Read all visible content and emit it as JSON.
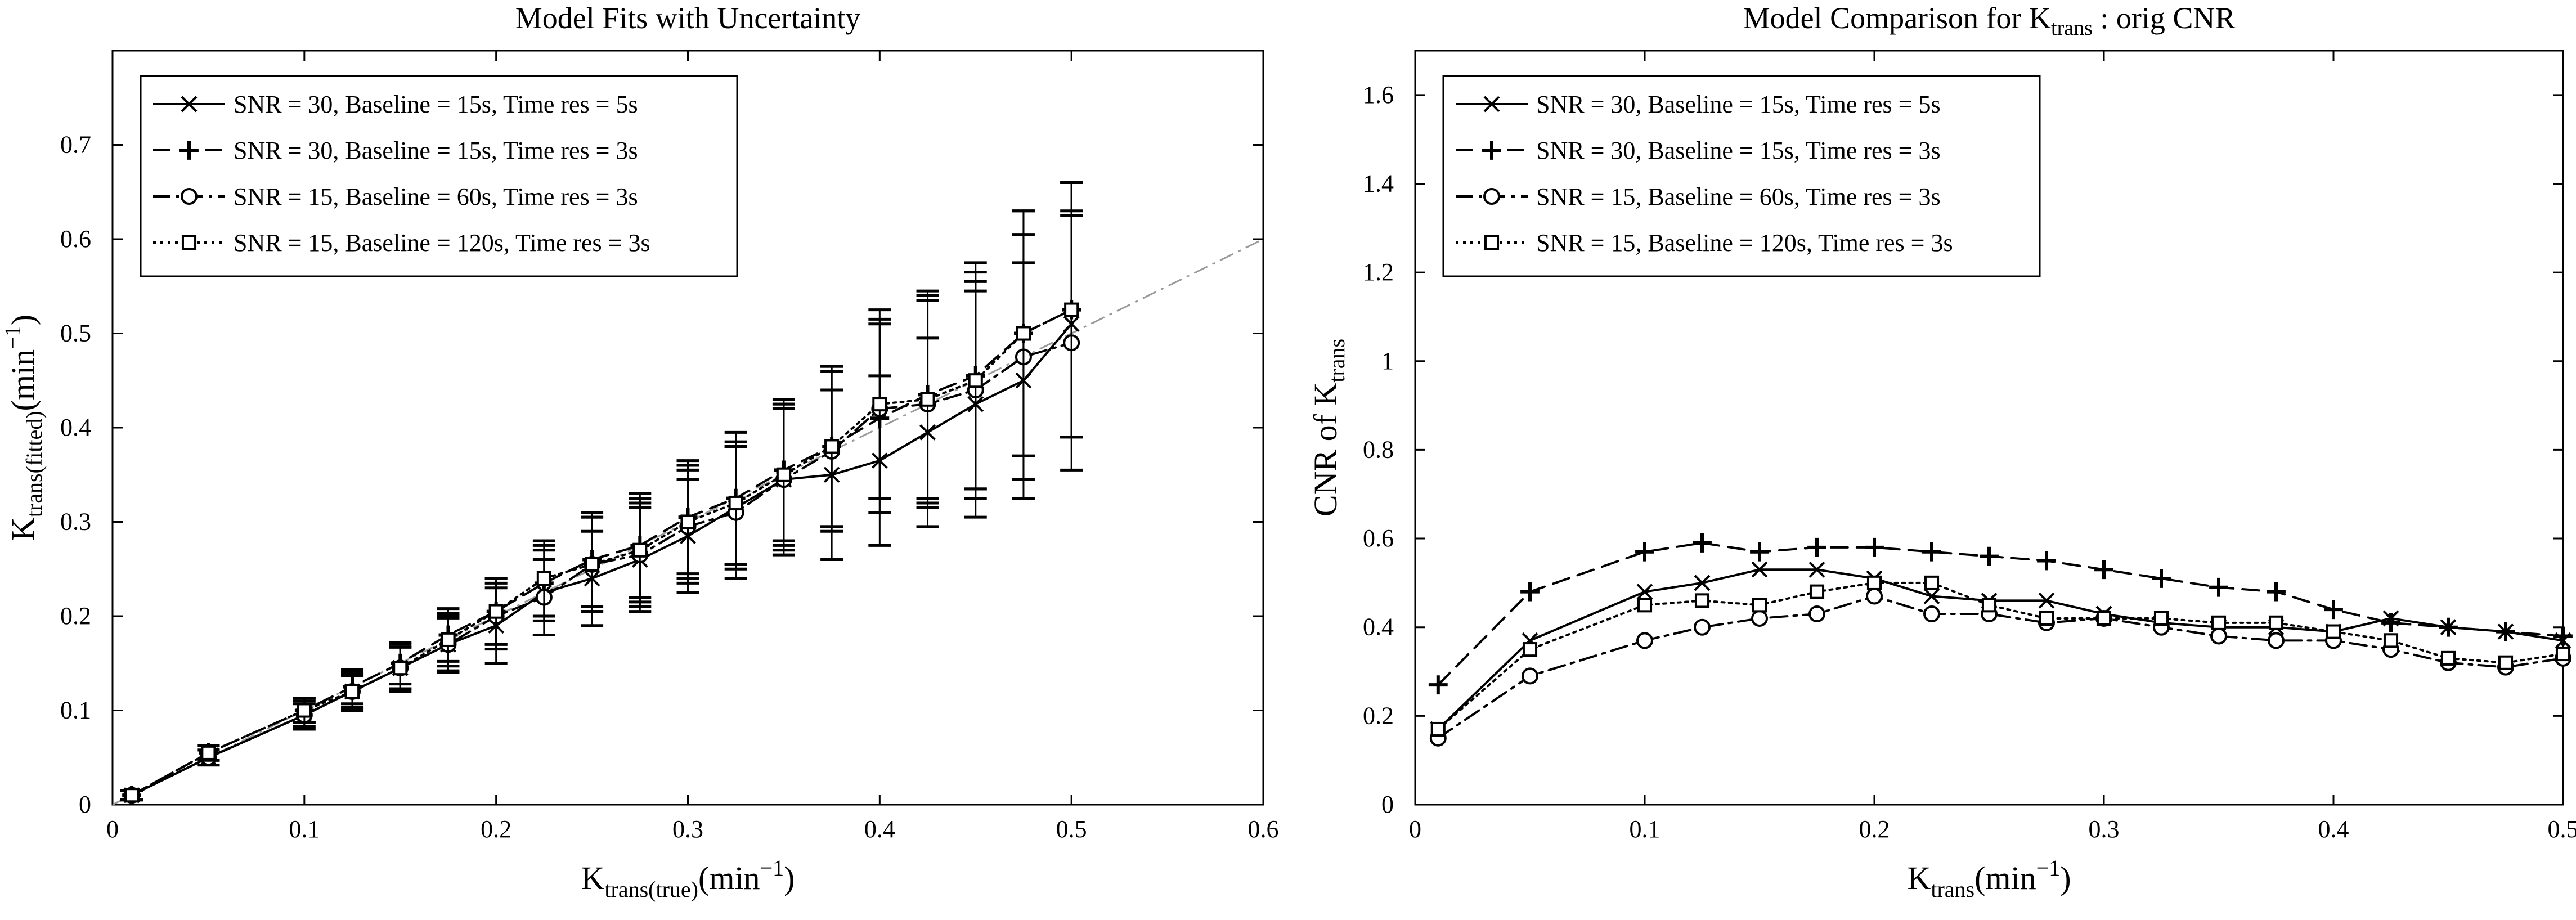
{
  "chart_data": [
    {
      "type": "line",
      "title": "Model Fits with Uncertainty",
      "xlabel": {
        "base": "K",
        "sub": "trans(true)",
        "unit": "(min",
        "sup": "−1",
        "close": ")"
      },
      "ylabel": {
        "base": "K",
        "sub": "trans(fitted)",
        "unit": "(min",
        "sup": "−1",
        "close": ")"
      },
      "xlim": [
        0,
        0.6
      ],
      "ylim": [
        0,
        0.8
      ],
      "xticks": [
        0,
        0.1,
        0.2,
        0.3,
        0.4,
        0.5,
        0.6
      ],
      "xtick_labels": [
        "0",
        "0.1",
        "0.2",
        "0.3",
        "0.4",
        "0.5",
        "0.6"
      ],
      "yticks": [
        0,
        0.1,
        0.2,
        0.3,
        0.4,
        0.5,
        0.6,
        0.7
      ],
      "ytick_labels": [
        "0",
        "0.1",
        "0.2",
        "0.3",
        "0.4",
        "0.5",
        "0.6",
        "0.7"
      ],
      "identity_line": {
        "x": [
          0,
          0.6
        ],
        "y": [
          0,
          0.6
        ]
      },
      "legend_position": "top-left",
      "x": [
        0.01,
        0.05,
        0.1,
        0.125,
        0.15,
        0.175,
        0.2,
        0.225,
        0.25,
        0.275,
        0.3,
        0.325,
        0.35,
        0.375,
        0.4,
        0.425,
        0.45,
        0.475,
        0.5
      ],
      "series": [
        {
          "name": "SNR = 30, Baseline = 15s, Time res = 5s",
          "marker": "x",
          "dash": "solid",
          "values": [
            0.01,
            0.05,
            0.095,
            0.12,
            0.145,
            0.17,
            0.19,
            0.225,
            0.24,
            0.26,
            0.285,
            0.315,
            0.345,
            0.35,
            0.365,
            0.395,
            0.425,
            0.45,
            0.51
          ],
          "err": [
            0.005,
            0.008,
            0.015,
            0.02,
            0.025,
            0.03,
            0.04,
            0.045,
            0.05,
            0.055,
            0.06,
            0.065,
            0.08,
            0.09,
            0.09,
            0.1,
            0.12,
            0.125,
            0.12
          ]
        },
        {
          "name": "SNR = 30, Baseline = 15s, Time res = 3s",
          "marker": "+",
          "dash": "dashed",
          "values": [
            0.01,
            0.055,
            0.1,
            0.125,
            0.15,
            0.18,
            0.205,
            0.235,
            0.26,
            0.275,
            0.305,
            0.325,
            0.355,
            0.38,
            0.41,
            0.435,
            0.455,
            0.5,
            0.525
          ],
          "err": [
            0.005,
            0.008,
            0.013,
            0.018,
            0.022,
            0.028,
            0.035,
            0.04,
            0.05,
            0.055,
            0.06,
            0.07,
            0.075,
            0.085,
            0.1,
            0.11,
            0.12,
            0.13,
            0.135
          ]
        },
        {
          "name": "SNR = 15, Baseline = 60s, Time res = 3s",
          "marker": "o",
          "dash": "dashdot",
          "values": [
            0.01,
            0.05,
            0.095,
            0.12,
            0.145,
            0.17,
            0.2,
            0.22,
            0.255,
            0.265,
            0.295,
            0.31,
            0.345,
            0.375,
            0.42,
            0.425,
            0.44,
            0.475,
            0.49
          ],
          "err": [
            0.005,
            0.008,
            0.012,
            0.017,
            0.022,
            0.028,
            0.035,
            0.04,
            0.05,
            0.055,
            0.06,
            0.07,
            0.075,
            0.085,
            0.095,
            0.11,
            0.115,
            0.13,
            0.135
          ]
        },
        {
          "name": "SNR = 15, Baseline = 120s, Time res = 3s",
          "marker": "square",
          "dash": "dotted",
          "values": [
            0.01,
            0.055,
            0.1,
            0.12,
            0.145,
            0.175,
            0.205,
            0.24,
            0.255,
            0.27,
            0.3,
            0.32,
            0.35,
            0.38,
            0.425,
            0.43,
            0.45,
            0.5,
            0.525
          ],
          "err": [
            0.005,
            0.008,
            0.013,
            0.018,
            0.022,
            0.028,
            0.035,
            0.04,
            0.05,
            0.055,
            0.06,
            0.065,
            0.075,
            0.085,
            0.1,
            0.11,
            0.115,
            0.13,
            0.135
          ]
        }
      ]
    },
    {
      "type": "line",
      "title": {
        "pre": "Model Comparison for K",
        "sub": "trans",
        "post": " : orig CNR"
      },
      "xlabel": {
        "base": "K",
        "sub": "trans",
        "unit": "(min",
        "sup": "−1",
        "close": ")"
      },
      "ylabel": {
        "base": "CNR of K",
        "sub": "trans"
      },
      "xlim": [
        0,
        0.5
      ],
      "ylim": [
        0,
        1.7
      ],
      "xticks": [
        0,
        0.1,
        0.2,
        0.3,
        0.4,
        0.5
      ],
      "xtick_labels": [
        "0",
        "0.1",
        "0.2",
        "0.3",
        "0.4",
        "0.5"
      ],
      "yticks": [
        0,
        0.2,
        0.4,
        0.6,
        0.8,
        1.0,
        1.2,
        1.4,
        1.6
      ],
      "ytick_labels": [
        "0",
        "0.2",
        "0.4",
        "0.6",
        "0.8",
        "1",
        "1.2",
        "1.4",
        "1.6"
      ],
      "legend_position": "top-left",
      "x": [
        0.01,
        0.05,
        0.1,
        0.125,
        0.15,
        0.175,
        0.2,
        0.225,
        0.25,
        0.275,
        0.3,
        0.325,
        0.35,
        0.375,
        0.4,
        0.425,
        0.45,
        0.475,
        0.5
      ],
      "series": [
        {
          "name": "SNR = 30, Baseline = 15s, Time res = 5s",
          "marker": "x",
          "dash": "solid",
          "values": [
            0.17,
            0.37,
            0.48,
            0.5,
            0.53,
            0.53,
            0.51,
            0.47,
            0.46,
            0.46,
            0.43,
            0.41,
            0.4,
            0.4,
            0.39,
            0.42,
            0.4,
            0.39,
            0.37
          ]
        },
        {
          "name": "SNR = 30, Baseline = 15s, Time res = 3s",
          "marker": "+",
          "dash": "dashed",
          "values": [
            0.27,
            0.48,
            0.57,
            0.59,
            0.57,
            0.58,
            0.58,
            0.57,
            0.56,
            0.55,
            0.53,
            0.51,
            0.49,
            0.48,
            0.44,
            0.41,
            0.4,
            0.39,
            0.38
          ]
        },
        {
          "name": "SNR = 15, Baseline = 60s, Time res = 3s",
          "marker": "o",
          "dash": "dashdot",
          "values": [
            0.15,
            0.29,
            0.37,
            0.4,
            0.42,
            0.43,
            0.47,
            0.43,
            0.43,
            0.41,
            0.42,
            0.4,
            0.38,
            0.37,
            0.37,
            0.35,
            0.32,
            0.31,
            0.33
          ]
        },
        {
          "name": "SNR = 15, Baseline = 120s, Time res = 3s",
          "marker": "square",
          "dash": "dotted",
          "values": [
            0.17,
            0.35,
            0.45,
            0.46,
            0.45,
            0.48,
            0.5,
            0.5,
            0.45,
            0.42,
            0.42,
            0.42,
            0.41,
            0.41,
            0.39,
            0.37,
            0.33,
            0.32,
            0.34
          ]
        }
      ]
    }
  ]
}
